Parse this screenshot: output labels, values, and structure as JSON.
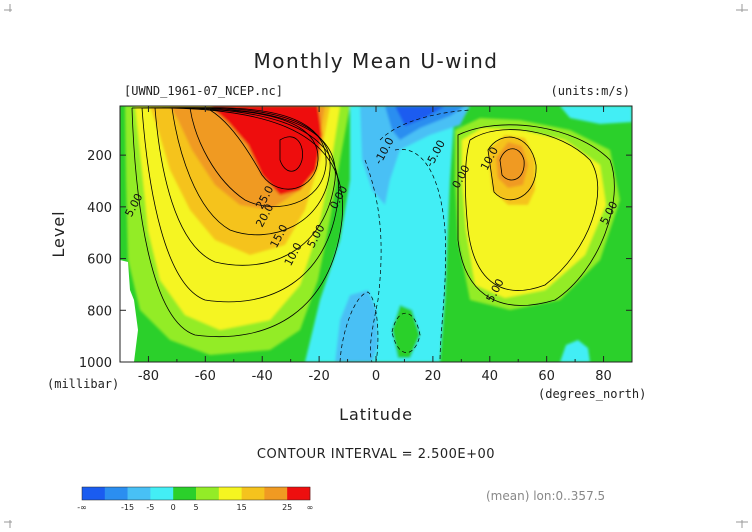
{
  "chart_data": {
    "type": "contour",
    "title": "Monthly Mean U-wind",
    "subtitle_left": "[UWND_1961-07_NCEP.nc]",
    "subtitle_right": "(units:m/s)",
    "xlabel": "Latitude",
    "ylabel": "Level",
    "x_unit": "(degrees_north)",
    "y_unit": "(millibar)",
    "xlim": [
      -90,
      90
    ],
    "ylim": [
      1000,
      10
    ],
    "x_ticks": [
      "-80",
      "-60",
      "-40",
      "-20",
      "0",
      "20",
      "40",
      "60",
      "80"
    ],
    "x_tick_values": [
      -80,
      -60,
      -40,
      -20,
      0,
      20,
      40,
      60,
      80
    ],
    "y_ticks": [
      "200",
      "400",
      "600",
      "800",
      "1000"
    ],
    "y_tick_values": [
      200,
      400,
      600,
      800,
      1000
    ],
    "contour_labels": [
      {
        "text": "5.00",
        "lat": -84,
        "lev": 400
      },
      {
        "text": "25.0",
        "lat": -38,
        "lev": 370
      },
      {
        "text": "20.0",
        "lat": -38,
        "lev": 440
      },
      {
        "text": "15.0",
        "lat": -33,
        "lev": 520
      },
      {
        "text": "10.0",
        "lat": -28,
        "lev": 590
      },
      {
        "text": "5.00",
        "lat": -20,
        "lev": 520
      },
      {
        "text": "0.00",
        "lat": -12,
        "lev": 370
      },
      {
        "text": "-10.0",
        "lat": 4,
        "lev": 190
      },
      {
        "text": "-5.00",
        "lat": 22,
        "lev": 200
      },
      {
        "text": "0.00",
        "lat": 31,
        "lev": 290
      },
      {
        "text": "10.0",
        "lat": 41,
        "lev": 220
      },
      {
        "text": "5.00",
        "lat": 43,
        "lev": 730
      },
      {
        "text": "5.00",
        "lat": 83,
        "lev": 430
      }
    ],
    "contour_interval": "CONTOUR INTERVAL = 2.500E+00",
    "colorbar": {
      "colors": [
        "#1a5cf0",
        "#2b8ef0",
        "#48c0f5",
        "#43eef5",
        "#2bd02b",
        "#93ec27",
        "#f5f520",
        "#f5c31d",
        "#f09a22",
        "#ee0f0f"
      ],
      "labels": [
        "-∞",
        "-15",
        "-5",
        "0",
        "5",
        "15",
        "25",
        "∞"
      ]
    },
    "mean_note": "(mean) lon:0..357.5"
  }
}
